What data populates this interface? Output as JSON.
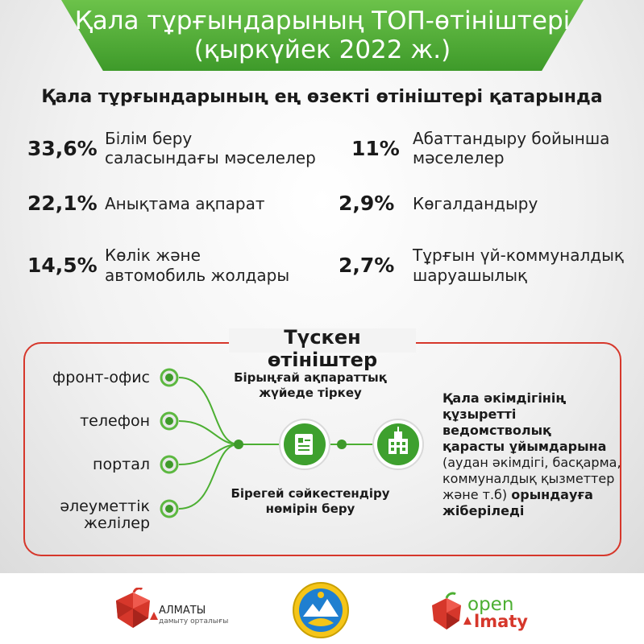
{
  "header": {
    "title_line1": "Қала тұрғындарының ТОП-өтініштері",
    "title_line2": "(қыркүйек 2022 ж.)"
  },
  "subtitle": "Қала тұрғындарының ең өзекті өтініштері қатарында",
  "stats": [
    {
      "value": "33,6%",
      "line1": "Білім беру",
      "line2": "саласындағы мәселелер"
    },
    {
      "value": "22,1%",
      "line1": "Анықтама ақпарат",
      "line2": ""
    },
    {
      "value": "14,5%",
      "line1": "Көлік және",
      "line2": "автомобиль жолдары"
    },
    {
      "value": "11%",
      "line1": "Абаттандыру бойынша",
      "line2": "мәселелер"
    },
    {
      "value": "2,9%",
      "line1": "Көгалдандыру",
      "line2": ""
    },
    {
      "value": "2,7%",
      "line1": "Тұрғын үй-коммуналдық",
      "line2": "шаруашылық"
    }
  ],
  "process": {
    "title": "Түскен өтініштер",
    "sources": [
      "фронт-офис",
      "телефон",
      "портал",
      "әлеуметтік",
      "желілер"
    ],
    "register_line1": "Бірыңғай ақпараттық",
    "register_line2": "жүйеде тіркеу",
    "id_line1": "Бірегей сәйкестендіру",
    "id_line2": "нөмірін беру",
    "dest_bold1": "Қала әкімдігінің",
    "dest_bold2": "құзыретті ведомстволық",
    "dest_bold3": "қарасты ұйымдарына",
    "dest_normal1": "(аудан әкімдігі, басқарма,",
    "dest_normal2": "коммуналдық қызметтер",
    "dest_normal3": "және т.б)",
    "dest_bold4": "орындауға",
    "dest_bold5": "жіберіледі"
  },
  "footer": {
    "left_logo_name": "АЛМАТЫ",
    "left_logo_sub": "дамыту орталығы",
    "right_logo_open": "open",
    "right_logo_imaty": "lmaty"
  },
  "colors": {
    "green": "#4caf32",
    "red": "#d6372b",
    "dark": "#1a1a1a"
  }
}
